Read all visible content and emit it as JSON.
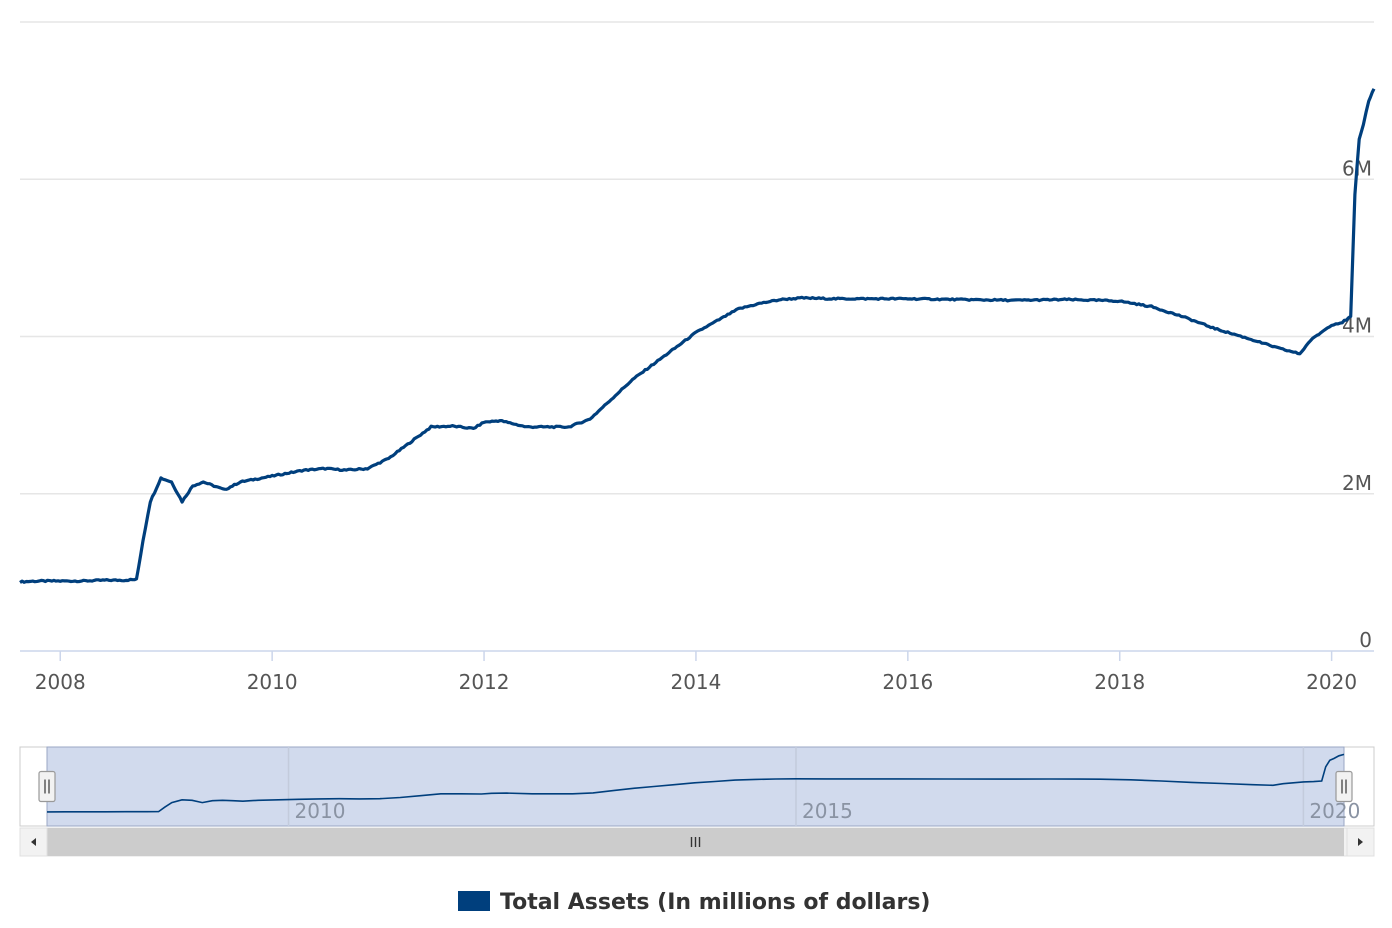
{
  "chart_data": {
    "type": "line",
    "title": "",
    "xlabel": "",
    "ylabel": "",
    "xlim": [
      2007.62,
      2020.4
    ],
    "ylim": [
      0,
      8000000
    ],
    "yticks": [
      0,
      2000000,
      4000000,
      6000000
    ],
    "ytick_labels": [
      "0",
      "2M",
      "4M",
      "6M"
    ],
    "xticks": [
      2008,
      2010,
      2012,
      2014,
      2016,
      2018,
      2020
    ],
    "xtick_labels": [
      "2008",
      "2010",
      "2012",
      "2014",
      "2016",
      "2018",
      "2020"
    ],
    "grid": "horizontal",
    "legend": "bottom-center",
    "color": "#003f7d",
    "series": [
      {
        "name": "Total Assets (In millions of dollars)",
        "x": [
          2007.62,
          2007.8,
          2008.0,
          2008.2,
          2008.4,
          2008.6,
          2008.72,
          2008.78,
          2008.85,
          2008.95,
          2009.05,
          2009.15,
          2009.25,
          2009.35,
          2009.45,
          2009.55,
          2009.7,
          2009.9,
          2010.1,
          2010.3,
          2010.5,
          2010.7,
          2010.9,
          2011.1,
          2011.3,
          2011.5,
          2011.7,
          2011.9,
          2012.0,
          2012.15,
          2012.4,
          2012.6,
          2012.8,
          2013.0,
          2013.2,
          2013.4,
          2013.6,
          2013.8,
          2014.0,
          2014.2,
          2014.4,
          2014.6,
          2014.8,
          2015.0,
          2015.3,
          2015.6,
          2016.0,
          2016.5,
          2017.0,
          2017.5,
          2017.8,
          2018.0,
          2018.3,
          2018.6,
          2018.9,
          2019.2,
          2019.5,
          2019.7,
          2019.8,
          2019.9,
          2020.0,
          2020.1,
          2020.18,
          2020.22,
          2020.26,
          2020.3,
          2020.35,
          2020.4
        ],
        "values": [
          880000,
          890000,
          890000,
          890000,
          900000,
          900000,
          910000,
          1400000,
          1900000,
          2200000,
          2150000,
          1900000,
          2100000,
          2150000,
          2100000,
          2050000,
          2150000,
          2200000,
          2250000,
          2300000,
          2320000,
          2300000,
          2320000,
          2450000,
          2650000,
          2850000,
          2860000,
          2830000,
          2910000,
          2930000,
          2850000,
          2850000,
          2850000,
          2950000,
          3200000,
          3450000,
          3650000,
          3850000,
          4050000,
          4200000,
          4350000,
          4420000,
          4470000,
          4490000,
          4480000,
          4480000,
          4480000,
          4470000,
          4460000,
          4470000,
          4460000,
          4450000,
          4380000,
          4250000,
          4100000,
          3980000,
          3850000,
          3780000,
          3950000,
          4050000,
          4150000,
          4180000,
          4250000,
          5800000,
          6500000,
          6700000,
          7000000,
          7150000
        ]
      }
    ],
    "navigator": {
      "xtick_labels": [
        "2010",
        "2015",
        "2020"
      ],
      "xticks": [
        2010,
        2015,
        2020
      ]
    }
  }
}
